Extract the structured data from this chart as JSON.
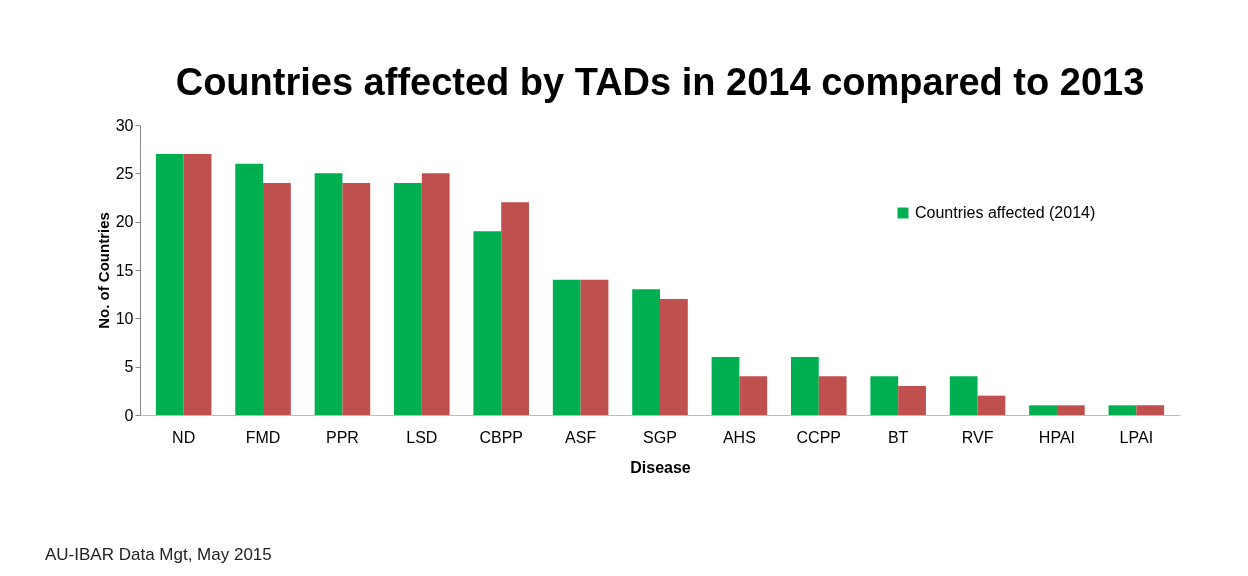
{
  "chart_data": {
    "type": "bar",
    "title": "Countries  affected by TADs in 2014 compared to 2013",
    "xlabel": "Disease",
    "ylabel": "No. of Countries",
    "categories": [
      "ND",
      "FMD",
      "PPR",
      "LSD",
      "CBPP",
      "ASF",
      "SGP",
      "AHS",
      "CCPP",
      "BT",
      "RVF",
      "HPAI",
      "LPAI"
    ],
    "series": [
      {
        "name": "Countries  affected (2014)",
        "color": "#00b050",
        "values": [
          27,
          26,
          25,
          24,
          19,
          14,
          13,
          6,
          6,
          4,
          4,
          1,
          1
        ]
      },
      {
        "color": "#c0504d",
        "values": [
          27,
          24,
          24,
          25,
          22,
          14,
          12,
          4,
          4,
          3,
          2,
          1,
          1
        ]
      }
    ],
    "ylim": [
      0,
      30
    ],
    "yticks": [
      0,
      5,
      10,
      15,
      20,
      25,
      30
    ],
    "grid": false,
    "legend": "top right",
    "annotations": [
      "AU-IBAR Data Mgt, May 2015"
    ]
  }
}
